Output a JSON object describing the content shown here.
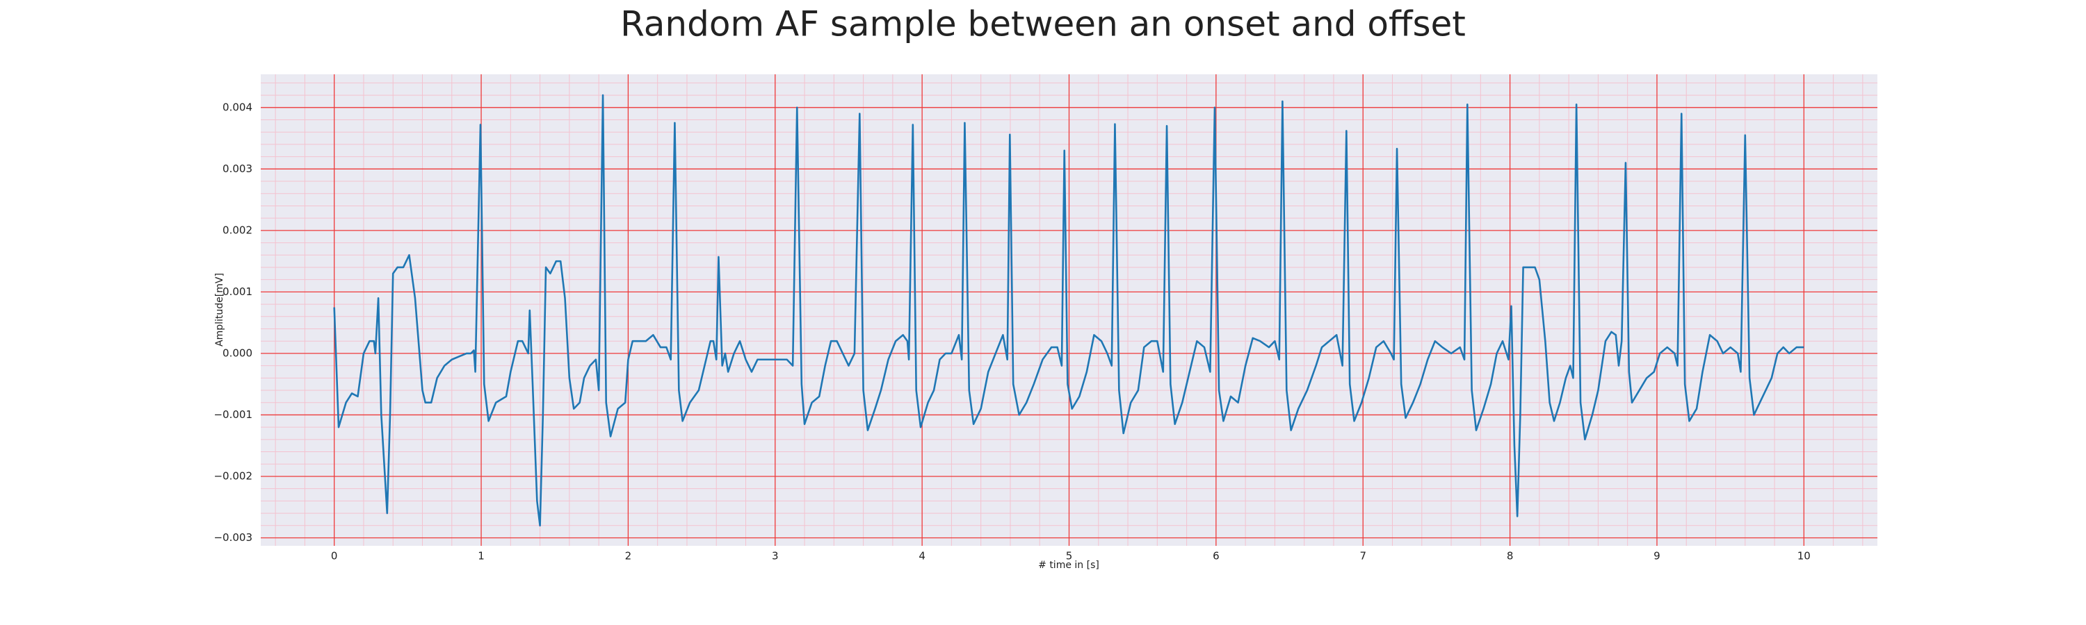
{
  "chart_data": {
    "type": "line",
    "title": "Random AF sample between an onset and offset",
    "xlabel": "# time in [s]",
    "ylabel": "Amplitude[mV]",
    "xlim": [
      -0.5,
      10.5
    ],
    "ylim": [
      -0.00313,
      0.00454
    ],
    "xticks": [
      0,
      1,
      2,
      3,
      4,
      5,
      6,
      7,
      8,
      9,
      10
    ],
    "yticks": [
      {
        "value": -0.003,
        "label": "−0.003"
      },
      {
        "value": -0.002,
        "label": "−0.002"
      },
      {
        "value": -0.001,
        "label": "−0.001"
      },
      {
        "value": 0,
        "label": "0.000"
      },
      0.001,
      0.002,
      0.003,
      0.004
    ],
    "grid": true,
    "minor_grid": true,
    "color": "#1f77b4",
    "x": [
      0.0,
      0.03,
      0.08,
      0.12,
      0.16,
      0.2,
      0.24,
      0.27,
      0.28,
      0.3,
      0.32,
      0.36,
      0.38,
      0.4,
      0.43,
      0.47,
      0.51,
      0.55,
      0.6,
      0.62,
      0.66,
      0.7,
      0.75,
      0.8,
      0.85,
      0.9,
      0.93,
      0.95,
      0.96,
      0.995,
      1.02,
      1.05,
      1.1,
      1.17,
      1.2,
      1.25,
      1.28,
      1.3,
      1.32,
      1.33,
      1.35,
      1.38,
      1.4,
      1.42,
      1.44,
      1.47,
      1.51,
      1.54,
      1.57,
      1.6,
      1.63,
      1.67,
      1.7,
      1.74,
      1.78,
      1.8,
      1.828,
      1.85,
      1.88,
      1.93,
      1.98,
      2.0,
      2.03,
      2.08,
      2.12,
      2.17,
      2.22,
      2.26,
      2.29,
      2.317,
      2.345,
      2.37,
      2.42,
      2.48,
      2.52,
      2.56,
      2.58,
      2.6,
      2.615,
      2.64,
      2.66,
      2.68,
      2.72,
      2.76,
      2.8,
      2.84,
      2.88,
      2.93,
      3.0,
      3.08,
      3.12,
      3.149,
      3.18,
      3.2,
      3.25,
      3.3,
      3.34,
      3.38,
      3.42,
      3.46,
      3.5,
      3.54,
      3.575,
      3.6,
      3.63,
      3.68,
      3.72,
      3.77,
      3.82,
      3.87,
      3.9,
      3.91,
      3.937,
      3.96,
      3.99,
      4.04,
      4.08,
      4.12,
      4.16,
      4.2,
      4.25,
      4.27,
      4.29,
      4.32,
      4.35,
      4.4,
      4.45,
      4.5,
      4.55,
      4.58,
      4.597,
      4.62,
      4.66,
      4.71,
      4.76,
      4.82,
      4.88,
      4.92,
      4.95,
      4.968,
      4.99,
      5.02,
      5.07,
      5.12,
      5.17,
      5.22,
      5.26,
      5.29,
      5.312,
      5.34,
      5.37,
      5.42,
      5.47,
      5.51,
      5.56,
      5.6,
      5.64,
      5.665,
      5.69,
      5.72,
      5.77,
      5.82,
      5.87,
      5.92,
      5.96,
      5.991,
      6.02,
      6.05,
      6.1,
      6.15,
      6.2,
      6.25,
      6.3,
      6.36,
      6.4,
      6.43,
      6.452,
      6.48,
      6.51,
      6.56,
      6.62,
      6.68,
      6.72,
      6.77,
      6.82,
      6.86,
      6.887,
      6.91,
      6.94,
      6.99,
      7.04,
      7.09,
      7.14,
      7.19,
      7.21,
      7.231,
      7.26,
      7.29,
      7.34,
      7.39,
      7.44,
      7.49,
      7.54,
      7.6,
      7.66,
      7.69,
      7.71,
      7.74,
      7.77,
      7.82,
      7.87,
      7.91,
      7.95,
      7.99,
      8.009,
      8.03,
      8.05,
      8.07,
      8.09,
      8.12,
      8.17,
      8.2,
      8.24,
      8.27,
      8.3,
      8.34,
      8.38,
      8.41,
      8.43,
      8.452,
      8.48,
      8.51,
      8.56,
      8.6,
      8.65,
      8.69,
      8.72,
      8.74,
      8.76,
      8.787,
      8.81,
      8.83,
      8.88,
      8.93,
      8.98,
      9.02,
      9.07,
      9.12,
      9.14,
      9.167,
      9.19,
      9.22,
      9.27,
      9.31,
      9.36,
      9.41,
      9.45,
      9.5,
      9.55,
      9.57,
      9.6,
      9.63,
      9.66,
      9.7,
      9.74,
      9.78,
      9.82,
      9.86,
      9.9,
      9.95,
      10.0
    ],
    "values": [
      0.00075,
      -0.0012,
      -0.0008,
      -0.00065,
      -0.0007,
      0.0,
      0.0002,
      0.0002,
      0.0,
      0.0009,
      -0.001,
      -0.0026,
      -0.001,
      0.0013,
      0.0014,
      0.0014,
      0.0016,
      0.0009,
      -0.0006,
      -0.0008,
      -0.0008,
      -0.0004,
      -0.0002,
      -0.0001,
      -5e-05,
      0.0,
      0.0,
      5e-05,
      -0.0003,
      0.00372,
      -0.0005,
      -0.0011,
      -0.0008,
      -0.0007,
      -0.0003,
      0.0002,
      0.0002,
      0.0001,
      0.0,
      0.0007,
      -0.0005,
      -0.0024,
      -0.0028,
      -0.001,
      0.0014,
      0.0013,
      0.0015,
      0.0015,
      0.0009,
      -0.0004,
      -0.0009,
      -0.0008,
      -0.0004,
      -0.0002,
      -0.0001,
      -0.0006,
      0.0042,
      -0.0008,
      -0.00135,
      -0.0009,
      -0.0008,
      -0.0001,
      0.0002,
      0.0002,
      0.0002,
      0.0003,
      0.0001,
      0.0001,
      -0.0001,
      0.00375,
      -0.0006,
      -0.0011,
      -0.0008,
      -0.0006,
      -0.0002,
      0.0002,
      0.0002,
      -0.0001,
      0.00157,
      -0.0002,
      0.0,
      -0.0003,
      0.0,
      0.0002,
      -0.0001,
      -0.0003,
      -0.0001,
      -0.0001,
      -0.0001,
      -0.0001,
      -0.0002,
      0.004,
      -0.0005,
      -0.00115,
      -0.0008,
      -0.0007,
      -0.0002,
      0.0002,
      0.0002,
      0.0,
      -0.0002,
      0.0,
      0.0039,
      -0.0006,
      -0.00125,
      -0.0009,
      -0.0006,
      -0.0001,
      0.0002,
      0.0003,
      0.0002,
      -0.0001,
      0.00372,
      -0.0006,
      -0.0012,
      -0.0008,
      -0.0006,
      -0.0001,
      0.0,
      0.0,
      0.0003,
      -0.0001,
      0.00375,
      -0.0006,
      -0.00115,
      -0.0009,
      -0.0003,
      0.0,
      0.0003,
      -0.0001,
      0.00356,
      -0.0005,
      -0.001,
      -0.0008,
      -0.0005,
      -0.0001,
      0.0001,
      0.0001,
      -0.0002,
      0.0033,
      -0.0005,
      -0.0009,
      -0.0007,
      -0.0003,
      0.0003,
      0.0002,
      0.0,
      -0.0002,
      0.00373,
      -0.0006,
      -0.0013,
      -0.0008,
      -0.0006,
      0.0001,
      0.0002,
      0.0002,
      -0.0003,
      0.0037,
      -0.0005,
      -0.00115,
      -0.0008,
      -0.0003,
      0.0002,
      0.0001,
      -0.0003,
      0.004,
      -0.0006,
      -0.0011,
      -0.0007,
      -0.0008,
      -0.0002,
      0.00025,
      0.0002,
      0.0001,
      0.0002,
      -0.0001,
      0.0041,
      -0.0006,
      -0.00125,
      -0.0009,
      -0.0006,
      -0.0002,
      0.0001,
      0.0002,
      0.0003,
      -0.0002,
      0.00362,
      -0.0005,
      -0.0011,
      -0.0008,
      -0.0004,
      0.0001,
      0.0002,
      0.0,
      -0.0001,
      0.00333,
      -0.0005,
      -0.00105,
      -0.0008,
      -0.0005,
      -0.0001,
      0.0002,
      0.0001,
      0.0,
      0.0001,
      -0.0001,
      0.00405,
      -0.0006,
      -0.00125,
      -0.0009,
      -0.0005,
      0.0,
      0.0002,
      -0.0001,
      0.00077,
      -0.0015,
      -0.00265,
      -0.001,
      0.0014,
      0.0014,
      0.0014,
      0.0012,
      0.0002,
      -0.0008,
      -0.0011,
      -0.0008,
      -0.0004,
      -0.0002,
      -0.0004,
      0.00405,
      -0.0008,
      -0.0014,
      -0.001,
      -0.0006,
      0.0002,
      0.00035,
      0.0003,
      -0.0002,
      0.0002,
      0.0031,
      -0.0003,
      -0.0008,
      -0.0006,
      -0.0004,
      -0.0003,
      0.0,
      0.0001,
      0.0,
      -0.0002,
      0.0039,
      -0.0005,
      -0.0011,
      -0.0009,
      -0.0003,
      0.0003,
      0.0002,
      0.0,
      0.0001,
      0.0,
      -0.0003,
      0.00355,
      -0.0004,
      -0.001,
      -0.0008,
      -0.0006,
      -0.0004,
      0.0,
      0.0001,
      0.0,
      0.0001,
      0.0001
    ]
  }
}
